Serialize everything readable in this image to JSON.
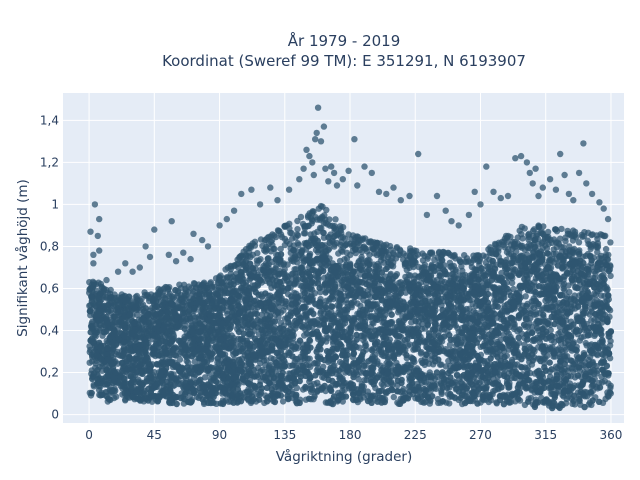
{
  "chart_data": {
    "type": "scatter",
    "title_line1": "År 1979 - 2019",
    "title_line2": "Koordinat (Sweref 99 TM): E 351291, N 6193907",
    "xlabel": "Vågriktning (grader)",
    "ylabel": "Signifikant våghöjd (m)",
    "xlim": [
      -18,
      369
    ],
    "ylim": [
      -0.04,
      1.53
    ],
    "x_ticks": [
      0,
      45,
      90,
      135,
      180,
      225,
      270,
      315,
      360
    ],
    "x_tick_labels": [
      "0",
      "45",
      "90",
      "135",
      "180",
      "225",
      "270",
      "315",
      "360"
    ],
    "y_ticks": [
      0,
      0.2,
      0.4,
      0.6,
      0.8,
      1.0,
      1.2,
      1.4
    ],
    "y_tick_labels": [
      "0",
      "0,2",
      "0,4",
      "0,6",
      "0,8",
      "1",
      "1,2",
      "1,4"
    ],
    "plot_bgcolor": "#e5ecf6",
    "grid_color": "#ffffff",
    "marker_color": "#2f5570",
    "grid": true,
    "series_envelope": {
      "description_x": [
        0,
        10,
        20,
        30,
        45,
        60,
        75,
        90,
        105,
        120,
        135,
        150,
        160,
        170,
        180,
        195,
        210,
        225,
        240,
        255,
        270,
        285,
        300,
        315,
        330,
        345,
        360
      ],
      "lower": [
        0.07,
        0.06,
        0.06,
        0.06,
        0.06,
        0.05,
        0.05,
        0.05,
        0.05,
        0.05,
        0.05,
        0.05,
        0.05,
        0.05,
        0.05,
        0.05,
        0.05,
        0.05,
        0.05,
        0.05,
        0.05,
        0.05,
        0.04,
        0.03,
        0.03,
        0.03,
        0.06
      ],
      "upper": [
        0.66,
        0.62,
        0.58,
        0.56,
        0.6,
        0.62,
        0.63,
        0.66,
        0.78,
        0.86,
        0.9,
        0.96,
        1.0,
        0.93,
        0.86,
        0.83,
        0.8,
        0.79,
        0.78,
        0.76,
        0.76,
        0.84,
        0.9,
        0.9,
        0.88,
        0.87,
        0.86
      ]
    },
    "outliers": [
      {
        "x": 1,
        "y": 0.87
      },
      {
        "x": 3,
        "y": 0.76
      },
      {
        "x": 3,
        "y": 0.72
      },
      {
        "x": 4,
        "y": 1.0
      },
      {
        "x": 6,
        "y": 0.85
      },
      {
        "x": 7,
        "y": 0.93
      },
      {
        "x": 7,
        "y": 0.78
      },
      {
        "x": 12,
        "y": 0.64
      },
      {
        "x": 20,
        "y": 0.68
      },
      {
        "x": 25,
        "y": 0.72
      },
      {
        "x": 30,
        "y": 0.68
      },
      {
        "x": 35,
        "y": 0.7
      },
      {
        "x": 39,
        "y": 0.8
      },
      {
        "x": 42,
        "y": 0.75
      },
      {
        "x": 45,
        "y": 0.88
      },
      {
        "x": 55,
        "y": 0.76
      },
      {
        "x": 57,
        "y": 0.92
      },
      {
        "x": 60,
        "y": 0.73
      },
      {
        "x": 65,
        "y": 0.77
      },
      {
        "x": 70,
        "y": 0.74
      },
      {
        "x": 72,
        "y": 0.86
      },
      {
        "x": 78,
        "y": 0.83
      },
      {
        "x": 82,
        "y": 0.8
      },
      {
        "x": 90,
        "y": 0.9
      },
      {
        "x": 95,
        "y": 0.93
      },
      {
        "x": 100,
        "y": 0.97
      },
      {
        "x": 105,
        "y": 1.05
      },
      {
        "x": 112,
        "y": 1.07
      },
      {
        "x": 118,
        "y": 1.0
      },
      {
        "x": 125,
        "y": 1.08
      },
      {
        "x": 130,
        "y": 1.02
      },
      {
        "x": 138,
        "y": 1.07
      },
      {
        "x": 145,
        "y": 1.12
      },
      {
        "x": 148,
        "y": 1.17
      },
      {
        "x": 150,
        "y": 1.26
      },
      {
        "x": 152,
        "y": 1.23
      },
      {
        "x": 154,
        "y": 1.2
      },
      {
        "x": 155,
        "y": 1.14
      },
      {
        "x": 156,
        "y": 1.31
      },
      {
        "x": 157,
        "y": 1.34
      },
      {
        "x": 158,
        "y": 1.46
      },
      {
        "x": 160,
        "y": 1.3
      },
      {
        "x": 162,
        "y": 1.37
      },
      {
        "x": 163,
        "y": 1.17
      },
      {
        "x": 165,
        "y": 1.11
      },
      {
        "x": 167,
        "y": 1.18
      },
      {
        "x": 169,
        "y": 1.15
      },
      {
        "x": 171,
        "y": 1.09
      },
      {
        "x": 175,
        "y": 1.12
      },
      {
        "x": 179,
        "y": 1.16
      },
      {
        "x": 183,
        "y": 1.31
      },
      {
        "x": 185,
        "y": 1.09
      },
      {
        "x": 190,
        "y": 1.18
      },
      {
        "x": 195,
        "y": 1.15
      },
      {
        "x": 200,
        "y": 1.06
      },
      {
        "x": 205,
        "y": 1.05
      },
      {
        "x": 210,
        "y": 1.08
      },
      {
        "x": 215,
        "y": 1.02
      },
      {
        "x": 221,
        "y": 1.04
      },
      {
        "x": 227,
        "y": 1.24
      },
      {
        "x": 233,
        "y": 0.95
      },
      {
        "x": 240,
        "y": 1.04
      },
      {
        "x": 246,
        "y": 0.97
      },
      {
        "x": 250,
        "y": 0.92
      },
      {
        "x": 255,
        "y": 0.9
      },
      {
        "x": 262,
        "y": 0.95
      },
      {
        "x": 266,
        "y": 1.06
      },
      {
        "x": 270,
        "y": 1.0
      },
      {
        "x": 274,
        "y": 1.18
      },
      {
        "x": 279,
        "y": 1.06
      },
      {
        "x": 284,
        "y": 1.03
      },
      {
        "x": 289,
        "y": 1.04
      },
      {
        "x": 294,
        "y": 1.22
      },
      {
        "x": 298,
        "y": 1.23
      },
      {
        "x": 302,
        "y": 1.2
      },
      {
        "x": 304,
        "y": 1.15
      },
      {
        "x": 306,
        "y": 1.1
      },
      {
        "x": 308,
        "y": 1.17
      },
      {
        "x": 310,
        "y": 1.04
      },
      {
        "x": 313,
        "y": 1.08
      },
      {
        "x": 318,
        "y": 1.12
      },
      {
        "x": 322,
        "y": 1.07
      },
      {
        "x": 325,
        "y": 1.24
      },
      {
        "x": 328,
        "y": 1.14
      },
      {
        "x": 331,
        "y": 1.05
      },
      {
        "x": 334,
        "y": 1.02
      },
      {
        "x": 338,
        "y": 1.15
      },
      {
        "x": 341,
        "y": 1.29
      },
      {
        "x": 343,
        "y": 1.1
      },
      {
        "x": 347,
        "y": 1.05
      },
      {
        "x": 352,
        "y": 1.01
      },
      {
        "x": 355,
        "y": 0.98
      },
      {
        "x": 358,
        "y": 0.93
      }
    ]
  }
}
